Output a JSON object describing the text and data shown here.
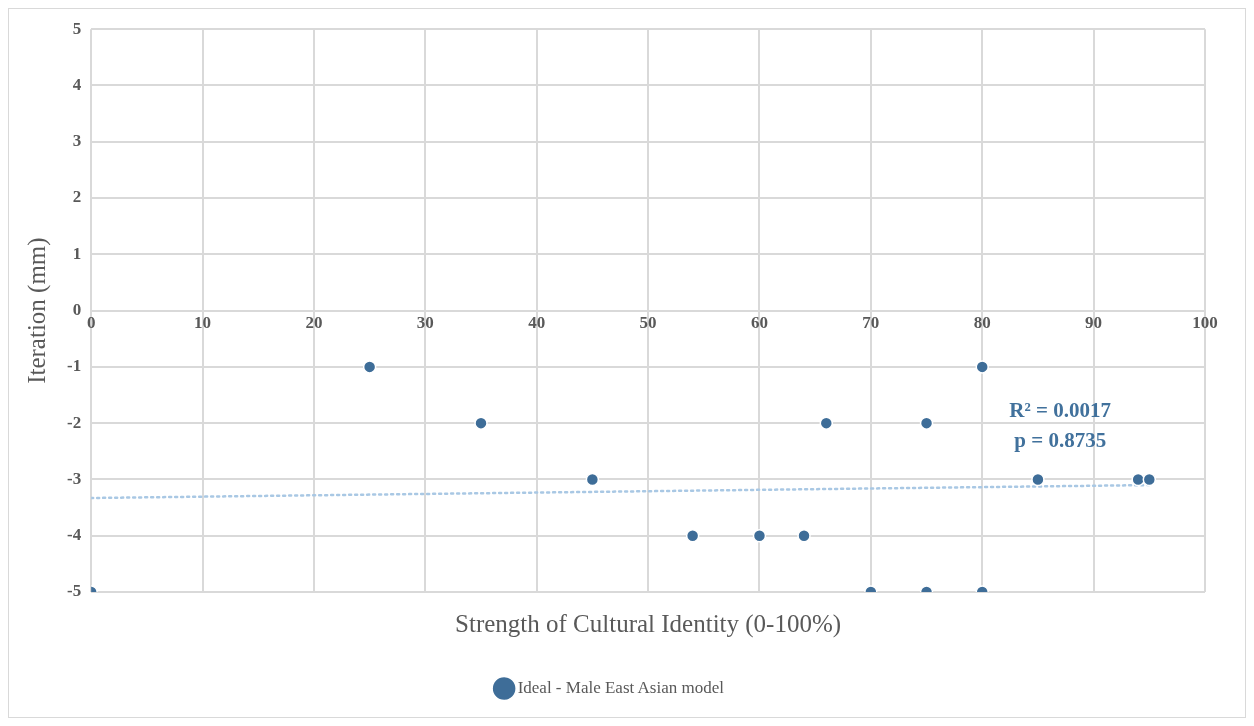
{
  "chart_data": {
    "type": "scatter",
    "xlabel": "Strength of Cultural Identity (0-100%)",
    "ylabel": "Iteration (mm)",
    "x": [
      0,
      25,
      35,
      45,
      54,
      60,
      64,
      66,
      70,
      75,
      75,
      80,
      80,
      85,
      94,
      95
    ],
    "series": [
      {
        "name": "Ideal - Male East Asian model",
        "color": "#3e6d98",
        "values": [
          -5,
          -1,
          -2,
          -3,
          -4,
          -4,
          -4,
          -2,
          -5,
          -2,
          -5,
          -1,
          -5,
          -3,
          -3,
          -3
        ]
      },
      {
        "type": "line",
        "x": [
          0,
          95
        ],
        "values": [
          -3.33,
          -3.1
        ],
        "color": "#a9c8e4",
        "line_style": "dotted",
        "marker": "none"
      }
    ],
    "xlim": [
      0,
      100
    ],
    "xticks": [
      0,
      10,
      20,
      30,
      40,
      50,
      60,
      70,
      80,
      90,
      100
    ],
    "ylim": [
      -5,
      5
    ],
    "yticks": [
      -5,
      -4,
      -3,
      -2,
      -1,
      0,
      1,
      2,
      3,
      4,
      5
    ],
    "grid": true,
    "legend": "bottom",
    "marker": "circle",
    "annotations": [
      "R² = 0.0017",
      "p = 0.8735"
    ]
  }
}
